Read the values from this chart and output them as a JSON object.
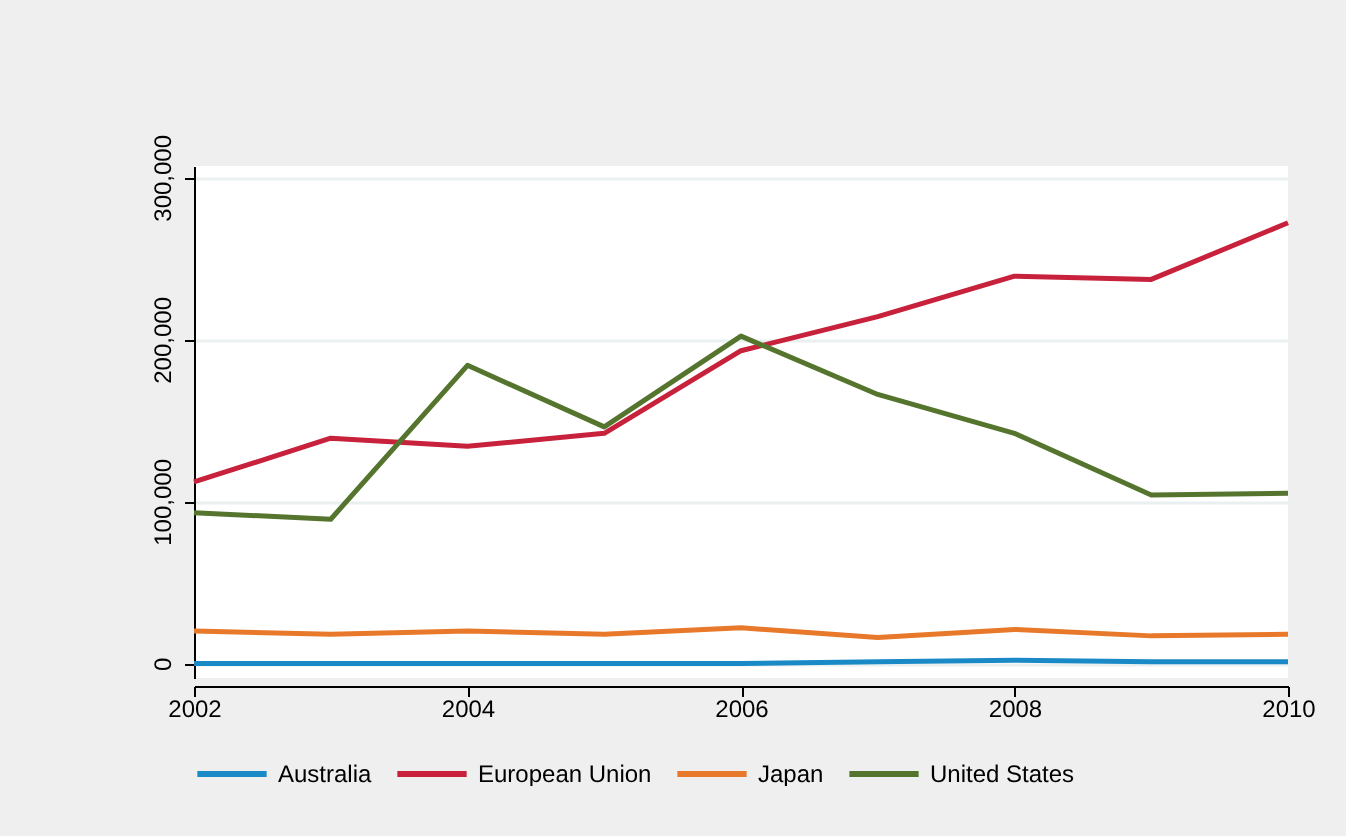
{
  "chart_data": {
    "type": "line",
    "x": [
      2002,
      2003,
      2004,
      2005,
      2006,
      2007,
      2008,
      2009,
      2010
    ],
    "series": [
      {
        "name": "Australia",
        "color": "#1a8ac6",
        "values": [
          0,
          0,
          0,
          0,
          0,
          1000,
          2000,
          1000,
          1000
        ]
      },
      {
        "name": "European Union",
        "color": "#c8213c",
        "values": [
          112000,
          139000,
          134000,
          142000,
          193000,
          214000,
          239000,
          237000,
          272000
        ]
      },
      {
        "name": "Japan",
        "color": "#e8792a",
        "values": [
          20000,
          18000,
          20000,
          18000,
          22000,
          16000,
          21000,
          17000,
          18000
        ]
      },
      {
        "name": "United States",
        "color": "#55752f",
        "values": [
          93000,
          89000,
          184000,
          146000,
          202000,
          166000,
          142000,
          104000,
          105000
        ]
      }
    ],
    "xlim": [
      2002,
      2010
    ],
    "xticks": [
      2002,
      2004,
      2006,
      2008,
      2010
    ],
    "ylim": [
      -9000,
      307000
    ],
    "yticks": [
      {
        "value": 0,
        "label": "0"
      },
      {
        "value": 100000,
        "label": "100,000"
      },
      {
        "value": 200000,
        "label": "200,000"
      },
      {
        "value": 300000,
        "label": "300,000"
      }
    ],
    "grid": "y",
    "legend": "bottom",
    "marker": "none",
    "line_style": "solid"
  }
}
